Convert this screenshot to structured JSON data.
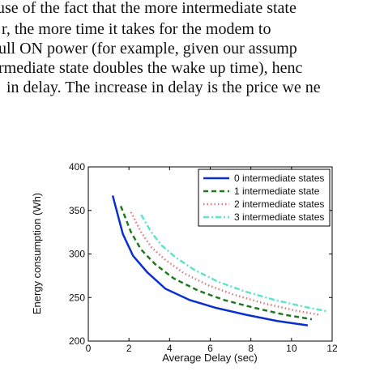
{
  "text": {
    "lines": [
      "use of the fact that the more intermediate state",
      "r, the more time it takes for the modem to",
      "ull ON power (for example, given our assump",
      "rmediate state doubles the wake up time), henc",
      "in delay. The increase in delay is the price we ne"
    ]
  },
  "chart_data": {
    "type": "line",
    "xlabel": "Average Delay (sec)",
    "ylabel": "Energy consumption (Wh)",
    "xlim": [
      0,
      12
    ],
    "xticks": [
      0,
      2,
      4,
      6,
      8,
      10,
      12
    ],
    "ylim": [
      200,
      400
    ],
    "yticks": [
      200,
      250,
      300,
      350,
      400
    ],
    "legend": "upper right",
    "series": [
      {
        "name": "0 intermediate states",
        "color": "#0a2fd0",
        "style": "solid",
        "x": [
          1.2,
          1.7,
          2.2,
          2.9,
          3.8,
          5.0,
          6.3,
          7.8,
          9.3,
          10.8
        ],
        "values": [
          367,
          323,
          298,
          279,
          260,
          247,
          238,
          230,
          223,
          218
        ]
      },
      {
        "name": "1 intermediate state",
        "color": "#1f7a1f",
        "style": "dashed",
        "x": [
          1.6,
          2.1,
          2.6,
          3.3,
          4.2,
          5.4,
          6.7,
          8.2,
          9.7,
          11.0
        ],
        "values": [
          355,
          325,
          305,
          288,
          272,
          258,
          247,
          238,
          230,
          225
        ]
      },
      {
        "name": "2 intermediate states",
        "color": "#e07a7a",
        "style": "dotted",
        "x": [
          2.1,
          2.6,
          3.1,
          3.8,
          4.7,
          5.9,
          7.2,
          8.7,
          10.2,
          11.4
        ],
        "values": [
          348,
          325,
          308,
          293,
          278,
          264,
          253,
          243,
          235,
          230
        ]
      },
      {
        "name": "3 intermediate states",
        "color": "#5fe3c9",
        "style": "dashdot",
        "x": [
          2.6,
          3.1,
          3.6,
          4.3,
          5.2,
          6.4,
          7.7,
          9.2,
          10.7,
          11.8
        ],
        "values": [
          345,
          325,
          310,
          296,
          282,
          268,
          257,
          247,
          239,
          234
        ]
      }
    ]
  }
}
